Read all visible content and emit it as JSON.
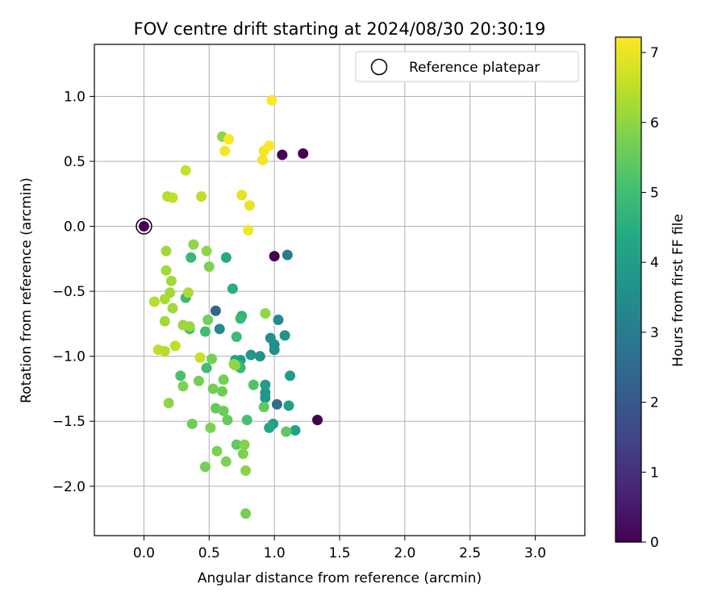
{
  "chart_data": {
    "type": "scatter",
    "title": "FOV centre drift starting at 2024/08/30 20:30:19",
    "xlabel": "Angular distance from reference (arcmin)",
    "ylabel": "Rotation from reference (arcmin)",
    "xlim": [
      -0.38,
      3.38
    ],
    "ylim": [
      -2.38,
      1.4
    ],
    "xticks": [
      "0.0",
      "0.5",
      "1.0",
      "1.5",
      "2.0",
      "2.5",
      "3.0"
    ],
    "yticks": [
      "1.0",
      "0.5",
      "0.0",
      "−0.5",
      "−1.0",
      "−1.5",
      "−2.0"
    ],
    "grid": true,
    "legend": {
      "position": "upper-right",
      "entries": [
        "Reference platepar"
      ]
    },
    "reference_point": [
      0.0,
      0.0
    ],
    "colorbar": {
      "label": "Hours from first FF file",
      "range": [
        0,
        7.22
      ],
      "ticks": [
        "0",
        "1",
        "2",
        "3",
        "4",
        "5",
        "6",
        "7"
      ],
      "colormap": "viridis"
    },
    "points": [
      [
        0.0,
        0.0,
        0.0
      ],
      [
        1.06,
        0.55,
        0.0
      ],
      [
        1.22,
        0.56,
        0.0
      ],
      [
        1.0,
        -0.23,
        0.0
      ],
      [
        1.33,
        -1.49,
        0.0
      ],
      [
        0.55,
        -0.65,
        2.3
      ],
      [
        1.02,
        -1.37,
        2.5
      ],
      [
        1.1,
        -0.22,
        3.1
      ],
      [
        0.58,
        -0.79,
        3.4
      ],
      [
        0.82,
        -0.99,
        3.8
      ],
      [
        0.89,
        -1.0,
        3.7
      ],
      [
        1.0,
        -0.95,
        3.6
      ],
      [
        1.0,
        -0.91,
        3.5
      ],
      [
        0.97,
        -0.86,
        3.6
      ],
      [
        1.03,
        -0.72,
        3.4
      ],
      [
        1.08,
        -0.84,
        3.7
      ],
      [
        0.74,
        -1.03,
        3.9
      ],
      [
        0.7,
        -1.03,
        4.1
      ],
      [
        0.93,
        -1.28,
        3.7
      ],
      [
        0.93,
        -1.32,
        3.8
      ],
      [
        0.93,
        -1.22,
        4.0
      ],
      [
        1.12,
        -1.15,
        3.9
      ],
      [
        1.11,
        -1.38,
        4.0
      ],
      [
        0.99,
        -1.52,
        4.0
      ],
      [
        0.96,
        -1.55,
        4.3
      ],
      [
        1.16,
        -1.57,
        4.2
      ],
      [
        0.63,
        -0.24,
        4.4
      ],
      [
        0.68,
        -0.48,
        4.5
      ],
      [
        0.75,
        -0.69,
        4.6
      ],
      [
        0.74,
        -0.71,
        4.8
      ],
      [
        0.71,
        -0.85,
        4.9
      ],
      [
        0.73,
        -1.07,
        4.7
      ],
      [
        0.74,
        -1.09,
        4.8
      ],
      [
        0.36,
        -0.24,
        4.8
      ],
      [
        0.32,
        -0.55,
        4.9
      ],
      [
        0.35,
        -0.79,
        5.0
      ],
      [
        0.47,
        -0.81,
        5.0
      ],
      [
        0.48,
        -1.09,
        5.0
      ],
      [
        0.28,
        -1.15,
        5.1
      ],
      [
        0.79,
        -1.49,
        5.1
      ],
      [
        0.84,
        -1.22,
        5.2
      ],
      [
        0.92,
        -1.39,
        5.4
      ],
      [
        1.09,
        -1.58,
        5.4
      ],
      [
        0.71,
        -1.68,
        5.4
      ],
      [
        0.64,
        -1.49,
        5.5
      ],
      [
        0.55,
        -1.4,
        5.5
      ],
      [
        0.61,
        -1.42,
        5.6
      ],
      [
        0.6,
        -1.27,
        5.6
      ],
      [
        0.61,
        -1.18,
        5.7
      ],
      [
        0.53,
        -1.25,
        5.7
      ],
      [
        0.52,
        -1.02,
        5.7
      ],
      [
        0.42,
        -1.19,
        5.7
      ],
      [
        0.3,
        -1.23,
        5.8
      ],
      [
        0.37,
        -1.52,
        5.6
      ],
      [
        0.51,
        -1.55,
        5.8
      ],
      [
        0.56,
        -1.73,
        5.8
      ],
      [
        0.47,
        -1.85,
        5.7
      ],
      [
        0.63,
        -1.81,
        5.8
      ],
      [
        0.76,
        -1.75,
        5.8
      ],
      [
        0.77,
        -1.68,
        5.9
      ],
      [
        0.78,
        -1.88,
        5.9
      ],
      [
        0.78,
        -2.21,
        5.7
      ],
      [
        0.49,
        -0.72,
        5.7
      ],
      [
        0.5,
        -0.31,
        5.8
      ],
      [
        0.48,
        -0.19,
        6.0
      ],
      [
        0.38,
        -0.14,
        6.0
      ],
      [
        0.19,
        -1.36,
        6.0
      ],
      [
        0.3,
        -0.76,
        6.1
      ],
      [
        0.35,
        -0.77,
        6.1
      ],
      [
        0.69,
        -1.06,
        6.0
      ],
      [
        0.7,
        -1.07,
        6.0
      ],
      [
        0.6,
        0.69,
        6.0
      ],
      [
        0.93,
        -0.67,
        6.0
      ],
      [
        0.17,
        -0.19,
        6.2
      ],
      [
        0.17,
        -0.34,
        6.2
      ],
      [
        0.21,
        -0.42,
        6.2
      ],
      [
        0.2,
        -0.51,
        6.2
      ],
      [
        0.16,
        -0.56,
        6.3
      ],
      [
        0.34,
        -0.51,
        6.3
      ],
      [
        0.22,
        -0.63,
        6.2
      ],
      [
        0.16,
        -0.73,
        6.2
      ],
      [
        0.08,
        -0.58,
        6.4
      ],
      [
        0.11,
        -0.95,
        6.5
      ],
      [
        0.16,
        -0.96,
        6.4
      ],
      [
        0.24,
        -0.92,
        6.5
      ],
      [
        0.43,
        -1.01,
        6.6
      ],
      [
        0.18,
        0.23,
        6.4
      ],
      [
        0.22,
        0.22,
        6.5
      ],
      [
        0.44,
        0.23,
        6.5
      ],
      [
        0.32,
        0.43,
        6.6
      ],
      [
        0.75,
        0.24,
        6.9
      ],
      [
        0.81,
        0.16,
        7.0
      ],
      [
        0.8,
        -0.03,
        7.1
      ],
      [
        0.62,
        0.58,
        7.1
      ],
      [
        0.65,
        0.67,
        7.2
      ],
      [
        0.91,
        0.51,
        7.1
      ],
      [
        0.92,
        0.58,
        7.1
      ],
      [
        0.96,
        0.62,
        7.2
      ],
      [
        0.98,
        0.97,
        7.2
      ]
    ]
  }
}
